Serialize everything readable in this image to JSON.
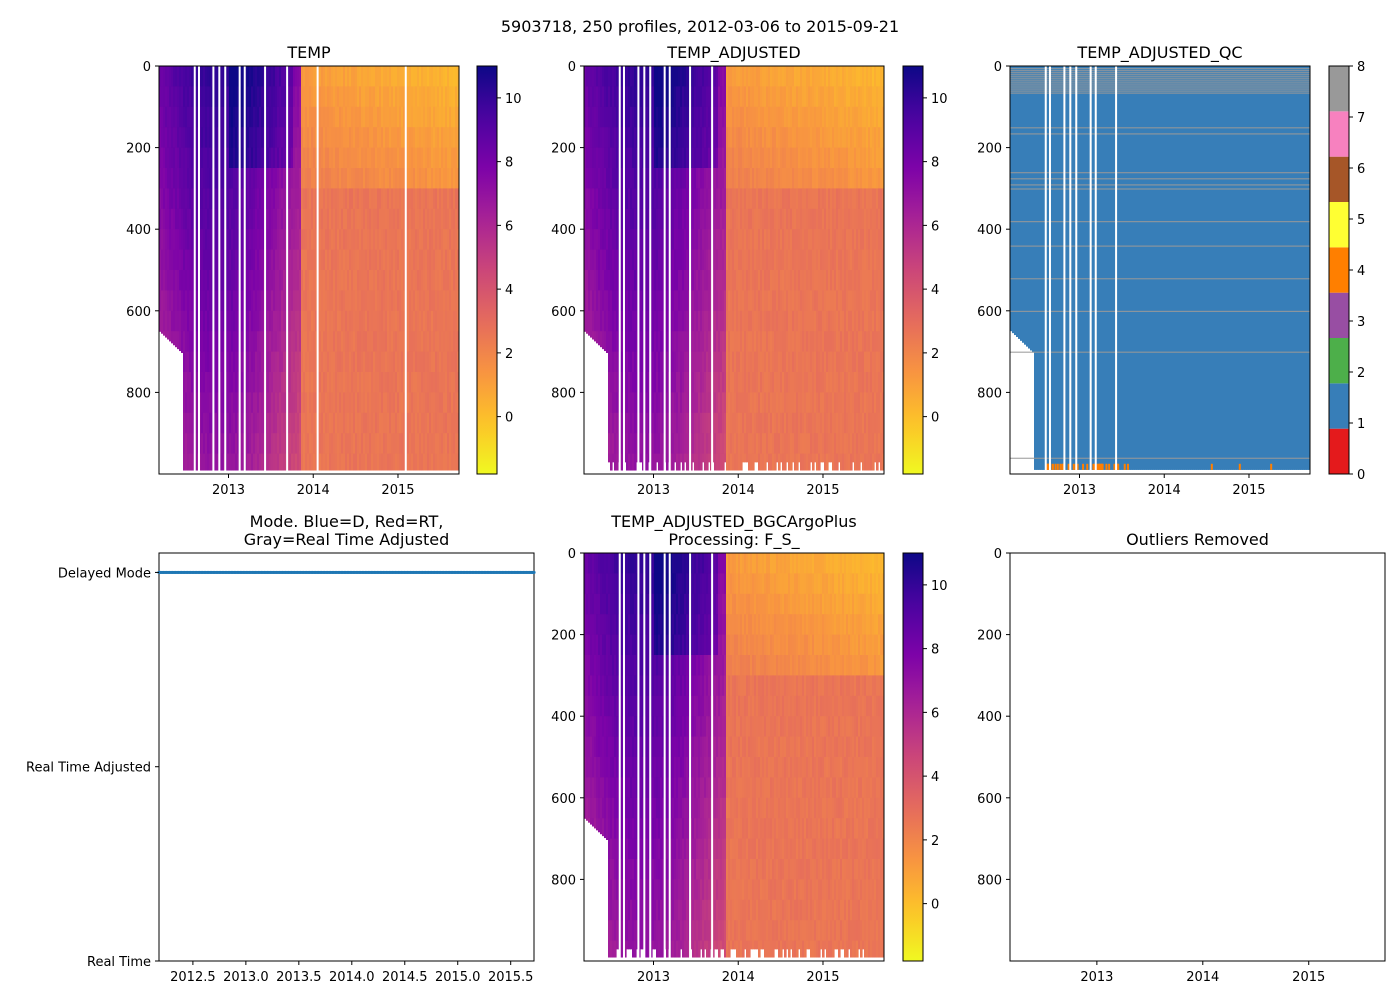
{
  "figure": {
    "suptitle": "5903718, 250 profiles, 2012-03-06 to 2015-09-21"
  },
  "chart_data": [
    {
      "id": "temp",
      "type": "heatmap",
      "title": "TEMP",
      "x_range": [
        2012.18,
        2015.72
      ],
      "y_range": [
        0,
        1000
      ],
      "y_inverted": true,
      "x_ticks": [
        2013,
        2014,
        2015
      ],
      "x_tick_labels": [
        "2013",
        "2014",
        "2015"
      ],
      "y_ticks": [
        0,
        200,
        400,
        600,
        800
      ],
      "y_tick_labels": [
        "0",
        "200",
        "400",
        "600",
        "800"
      ],
      "colormap": "plasma_r",
      "color_range": [
        -1.8,
        11
      ],
      "colorbar_ticks": [
        0,
        2,
        4,
        6,
        8,
        10
      ],
      "colorbar_tick_labels": [
        "0",
        "2",
        "4",
        "6",
        "8",
        "10"
      ],
      "profile_depth_shallow": 650,
      "profile_depth_full": 990,
      "gaps": [
        2012.59,
        2012.64,
        2012.81,
        2012.88,
        2012.95,
        2013.12,
        2013.18,
        2013.42,
        2013.68,
        2014.04,
        2015.08
      ]
    },
    {
      "id": "temp_adj",
      "type": "heatmap",
      "title": "TEMP_ADJUSTED",
      "x_range": [
        2012.18,
        2015.72
      ],
      "y_range": [
        0,
        1000
      ],
      "y_inverted": true,
      "x_ticks": [
        2013,
        2014,
        2015
      ],
      "x_tick_labels": [
        "2013",
        "2014",
        "2015"
      ],
      "y_ticks": [
        0,
        200,
        400,
        600,
        800
      ],
      "y_tick_labels": [
        "0",
        "200",
        "400",
        "600",
        "800"
      ],
      "colormap": "plasma_r",
      "color_range": [
        -1.8,
        11
      ],
      "colorbar_ticks": [
        0,
        2,
        4,
        6,
        8,
        10
      ],
      "colorbar_tick_labels": [
        "0",
        "2",
        "4",
        "6",
        "8",
        "10"
      ],
      "profile_depth_shallow": 650,
      "profile_depth_full": 990,
      "gaps": [
        2012.59,
        2012.64,
        2012.81,
        2012.88,
        2012.95,
        2013.12,
        2013.18,
        2013.42,
        2013.68
      ]
    },
    {
      "id": "temp_qc",
      "type": "heatmap",
      "title": "TEMP_ADJUSTED_QC",
      "x_range": [
        2012.18,
        2015.72
      ],
      "y_range": [
        0,
        1000
      ],
      "y_inverted": true,
      "x_ticks": [
        2013,
        2014,
        2015
      ],
      "x_tick_labels": [
        "2013",
        "2014",
        "2015"
      ],
      "y_ticks": [
        0,
        200,
        400,
        600,
        800
      ],
      "y_tick_labels": [
        "0",
        "200",
        "400",
        "600",
        "800"
      ],
      "dominant_flag": 1,
      "flag_colors": [
        "#e41a1c",
        "#377eb8",
        "#4daf4a",
        "#984ea3",
        "#ff7f00",
        "#ffff33",
        "#a65628",
        "#f781bf",
        "#999999"
      ],
      "colorbar_ticks": [
        0,
        1,
        2,
        3,
        4,
        5,
        6,
        7,
        8
      ],
      "colorbar_tick_labels": [
        "0",
        "1",
        "2",
        "3",
        "4",
        "5",
        "6",
        "7",
        "8"
      ],
      "flag8_depths": [
        5,
        10,
        15,
        20,
        25,
        30,
        35,
        40,
        45,
        50,
        55,
        60,
        65,
        150,
        165,
        260,
        275,
        290,
        300,
        380,
        440,
        520,
        600,
        700,
        960
      ],
      "flag4_near_bottom": true,
      "gaps": [
        2012.59,
        2012.64,
        2012.81,
        2012.88,
        2012.95,
        2013.12,
        2013.18,
        2013.42
      ]
    },
    {
      "id": "mode",
      "type": "scatter",
      "title": "Mode. Blue=D, Red=RT,\nGray=Real Time Adjusted",
      "x_range": [
        2012.18,
        2015.72
      ],
      "x_ticks": [
        2012.5,
        2013.0,
        2013.5,
        2014.0,
        2014.5,
        2015.0,
        2015.5
      ],
      "x_tick_labels": [
        "2012.5",
        "2013.0",
        "2013.5",
        "2014.0",
        "2014.5",
        "2015.0",
        "2015.5"
      ],
      "y_categories": [
        "Real Time",
        "Real Time Adjusted",
        "Delayed Mode"
      ],
      "y_range": [
        0,
        2.1
      ],
      "series": [
        {
          "name": "Delayed Mode",
          "y": 2,
          "x_start": 2012.18,
          "x_end": 2015.72,
          "n": 250,
          "color": "#1f77b4"
        }
      ]
    },
    {
      "id": "bgc",
      "type": "heatmap",
      "title": "TEMP_ADJUSTED_BGCArgoPlus\nProcessing: F_S_",
      "x_range": [
        2012.18,
        2015.72
      ],
      "y_range": [
        0,
        1000
      ],
      "y_inverted": true,
      "x_ticks": [
        2013,
        2014,
        2015
      ],
      "x_tick_labels": [
        "2013",
        "2014",
        "2015"
      ],
      "y_ticks": [
        0,
        200,
        400,
        600,
        800
      ],
      "y_tick_labels": [
        "0",
        "200",
        "400",
        "600",
        "800"
      ],
      "colormap": "plasma_r",
      "color_range": [
        -1.8,
        11
      ],
      "colorbar_ticks": [
        0,
        2,
        4,
        6,
        8,
        10
      ],
      "colorbar_tick_labels": [
        "0",
        "2",
        "4",
        "6",
        "8",
        "10"
      ],
      "profile_depth_shallow": 650,
      "profile_depth_full": 990,
      "gaps": [
        2012.59,
        2012.64,
        2012.81,
        2012.88,
        2012.95,
        2013.12,
        2013.18,
        2013.42,
        2013.68
      ]
    },
    {
      "id": "outliers",
      "type": "scatter",
      "title": "Outliers Removed",
      "x_range": [
        2012.18,
        2015.72
      ],
      "y_range": [
        0,
        1000
      ],
      "y_inverted": true,
      "x_ticks": [
        2013,
        2014,
        2015
      ],
      "x_tick_labels": [
        "2013",
        "2014",
        "2015"
      ],
      "y_ticks": [
        0,
        200,
        400,
        600,
        800
      ],
      "y_tick_labels": [
        "0",
        "200",
        "400",
        "600",
        "800"
      ],
      "series": []
    }
  ]
}
